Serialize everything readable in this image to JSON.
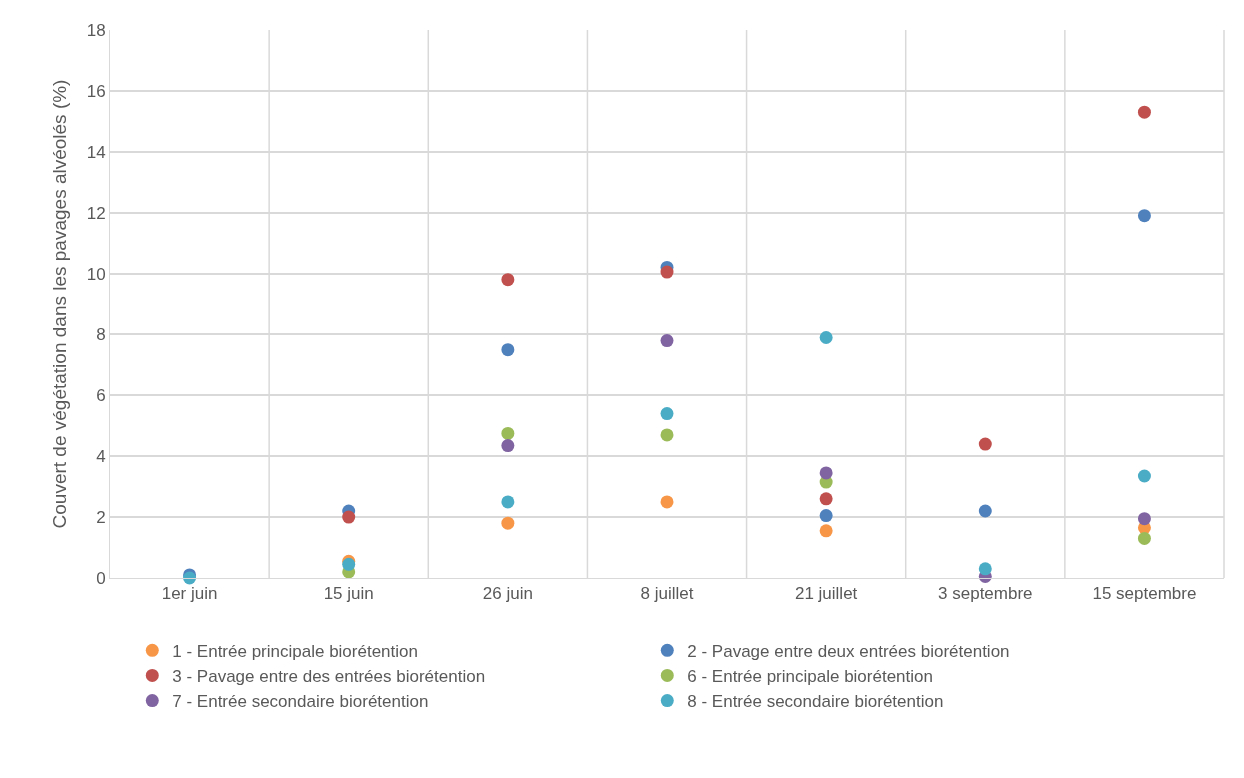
{
  "chart_data": {
    "type": "scatter",
    "ylabel": "Couvert de végétation dans les pavages alvéolés (%)",
    "categories": [
      "1er juin",
      "15 juin",
      "26 juin",
      "8 juillet",
      "21 juillet",
      "3 septembre",
      "15 septembre"
    ],
    "series": [
      {
        "name": "1 - Entrée principale biorétention",
        "color": "#f79646",
        "values": [
          null,
          0.55,
          1.8,
          2.5,
          1.55,
          null,
          1.65
        ]
      },
      {
        "name": "2 - Pavage entre deux entrées biorétention",
        "color": "#4f81bd",
        "values": [
          0.1,
          2.2,
          7.5,
          10.2,
          2.05,
          2.2,
          11.9
        ]
      },
      {
        "name": "3 - Pavage entre des entrées biorétention",
        "color": "#c0504d",
        "values": [
          null,
          2.0,
          9.8,
          10.05,
          2.6,
          4.4,
          15.3
        ]
      },
      {
        "name": "6 - Entrée principale biorétention",
        "color": "#9bbb59",
        "values": [
          null,
          0.2,
          4.75,
          4.7,
          3.15,
          null,
          1.3
        ]
      },
      {
        "name": "7 - Entrée secondaire biorétention",
        "color": "#8064a2",
        "values": [
          null,
          null,
          4.35,
          7.8,
          3.45,
          0.05,
          1.95
        ]
      },
      {
        "name": "8 - Entrée secondaire biorétention",
        "color": "#4bacc6",
        "values": [
          0,
          0.45,
          2.5,
          5.4,
          7.9,
          0.3,
          3.35
        ]
      }
    ],
    "ylim": [
      0,
      18
    ],
    "yticks": [
      0,
      2,
      4,
      6,
      8,
      10,
      12,
      14,
      16,
      18
    ],
    "grid": true,
    "legend": "bottom",
    "marker": "circle"
  }
}
